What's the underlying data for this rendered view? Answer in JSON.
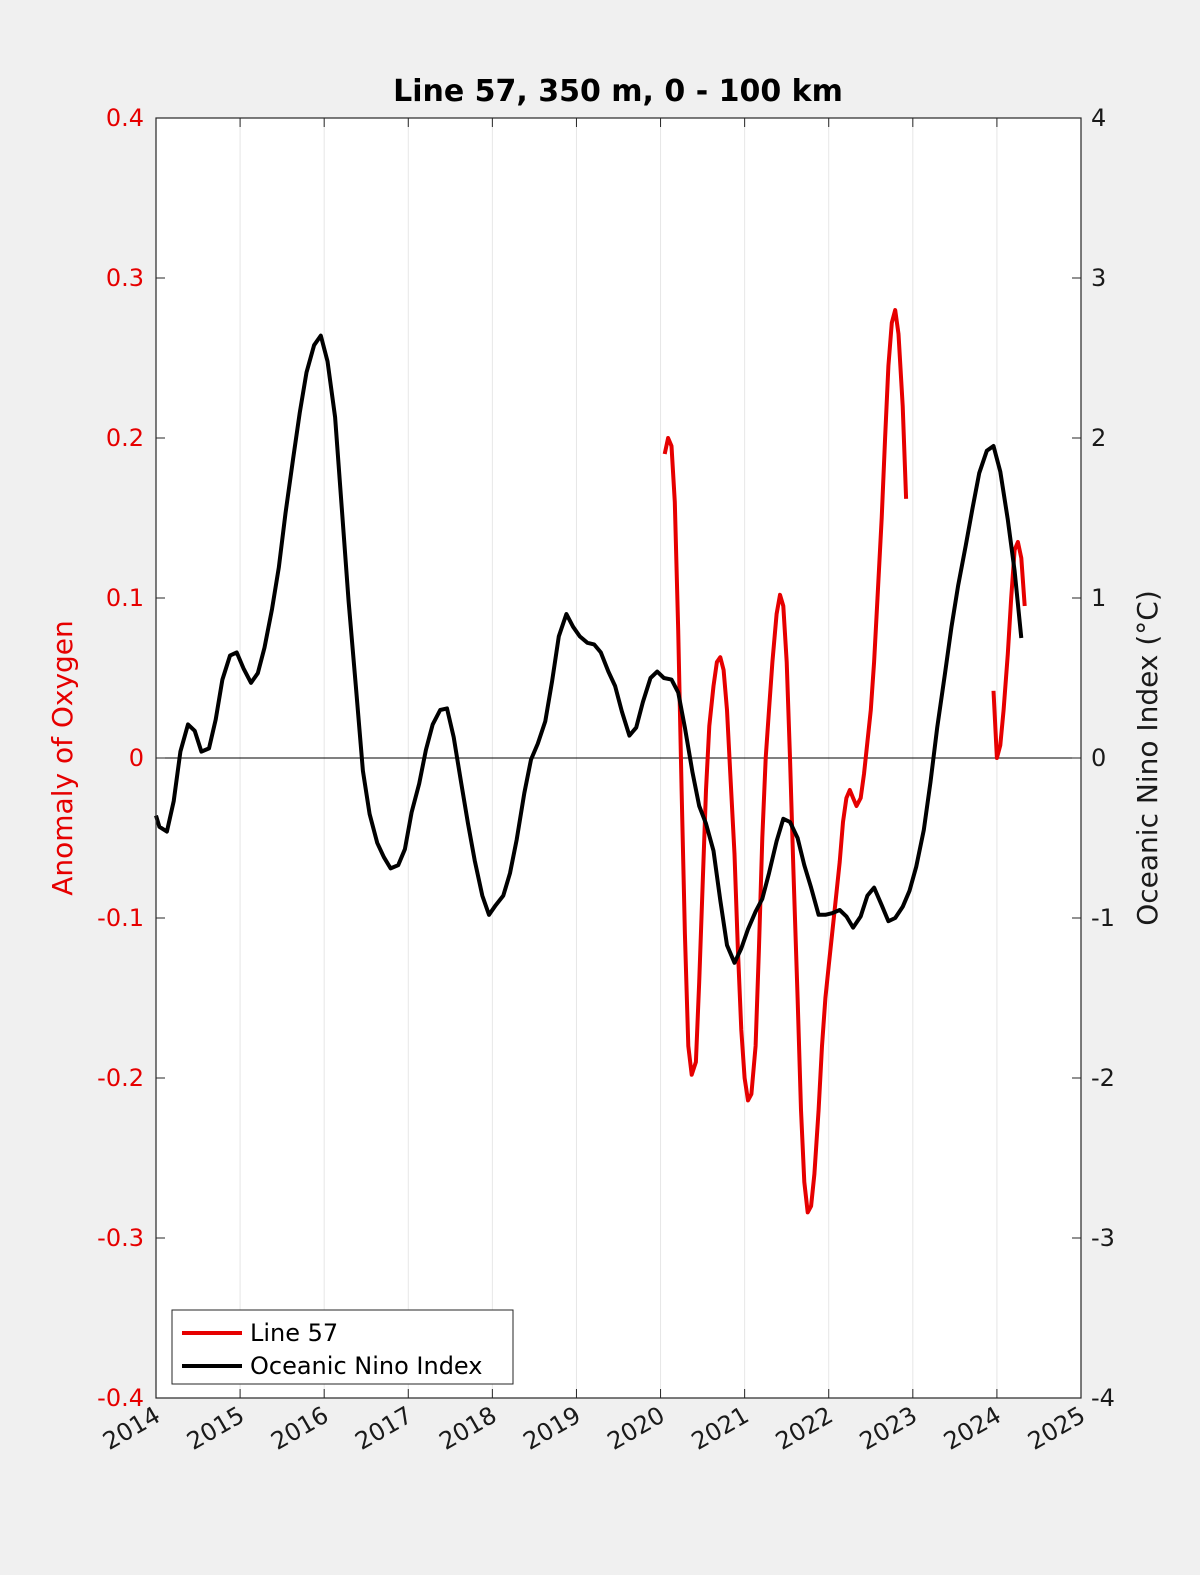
{
  "chart_data": {
    "type": "line",
    "title": "Line 57, 350 m, 0 - 100 km",
    "xlim": [
      2014,
      2025
    ],
    "x_ticks": [
      "2014",
      "2015",
      "2016",
      "2017",
      "2018",
      "2019",
      "2020",
      "2021",
      "2022",
      "2023",
      "2024",
      "2025"
    ],
    "ylabel_left": "Anomaly of Oxygen",
    "ylim_left": [
      -0.4,
      0.4
    ],
    "y_ticks_left": [
      "-0.4",
      "-0.3",
      "-0.2",
      "-0.1",
      "0",
      "0.1",
      "0.2",
      "0.3",
      "0.4"
    ],
    "ylabel_right": "Oceanic Nino Index (°C)",
    "ylim_right": [
      -4,
      4
    ],
    "y_ticks_right": [
      "-4",
      "-3",
      "-2",
      "-1",
      "0",
      "1",
      "2",
      "3",
      "4"
    ],
    "grid": "vertical",
    "zero_line": true,
    "legend_position": "bottom-left",
    "series": [
      {
        "name": "Line 57",
        "axis": "left",
        "color": "#e60000",
        "segments": [
          [
            [
              2020.05,
              0.19
            ],
            [
              2020.09,
              0.2
            ],
            [
              2020.13,
              0.195
            ],
            [
              2020.17,
              0.16
            ],
            [
              2020.21,
              0.08
            ],
            [
              2020.25,
              -0.02
            ],
            [
              2020.29,
              -0.11
            ],
            [
              2020.33,
              -0.18
            ],
            [
              2020.37,
              -0.198
            ],
            [
              2020.42,
              -0.19
            ],
            [
              2020.46,
              -0.14
            ],
            [
              2020.5,
              -0.08
            ],
            [
              2020.54,
              -0.02
            ],
            [
              2020.58,
              0.02
            ],
            [
              2020.63,
              0.045
            ],
            [
              2020.67,
              0.06
            ],
            [
              2020.71,
              0.063
            ],
            [
              2020.75,
              0.055
            ],
            [
              2020.79,
              0.03
            ],
            [
              2020.83,
              -0.01
            ],
            [
              2020.88,
              -0.06
            ],
            [
              2020.92,
              -0.12
            ],
            [
              2020.96,
              -0.17
            ],
            [
              2021.0,
              -0.2
            ],
            [
              2021.04,
              -0.214
            ],
            [
              2021.08,
              -0.21
            ],
            [
              2021.13,
              -0.18
            ],
            [
              2021.17,
              -0.12
            ],
            [
              2021.21,
              -0.05
            ],
            [
              2021.25,
              0.0
            ],
            [
              2021.29,
              0.03
            ],
            [
              2021.33,
              0.06
            ],
            [
              2021.38,
              0.09
            ],
            [
              2021.42,
              0.102
            ],
            [
              2021.46,
              0.095
            ],
            [
              2021.5,
              0.06
            ],
            [
              2021.54,
              0.0
            ],
            [
              2021.58,
              -0.07
            ],
            [
              2021.63,
              -0.15
            ],
            [
              2021.67,
              -0.22
            ],
            [
              2021.71,
              -0.265
            ],
            [
              2021.75,
              -0.284
            ],
            [
              2021.79,
              -0.28
            ],
            [
              2021.83,
              -0.26
            ],
            [
              2021.88,
              -0.22
            ],
            [
              2021.92,
              -0.18
            ],
            [
              2021.96,
              -0.15
            ],
            [
              2022.0,
              -0.13
            ],
            [
              2022.04,
              -0.11
            ],
            [
              2022.08,
              -0.09
            ],
            [
              2022.13,
              -0.065
            ],
            [
              2022.17,
              -0.04
            ],
            [
              2022.21,
              -0.025
            ],
            [
              2022.25,
              -0.02
            ],
            [
              2022.29,
              -0.025
            ],
            [
              2022.33,
              -0.03
            ],
            [
              2022.38,
              -0.025
            ],
            [
              2022.42,
              -0.01
            ],
            [
              2022.46,
              0.01
            ],
            [
              2022.5,
              0.03
            ],
            [
              2022.54,
              0.06
            ],
            [
              2022.58,
              0.1
            ],
            [
              2022.63,
              0.15
            ],
            [
              2022.67,
              0.2
            ],
            [
              2022.71,
              0.245
            ],
            [
              2022.75,
              0.272
            ],
            [
              2022.79,
              0.28
            ],
            [
              2022.83,
              0.265
            ],
            [
              2022.88,
              0.22
            ],
            [
              2022.92,
              0.162
            ]
          ],
          [
            [
              2023.96,
              0.042
            ],
            [
              2024.0,
              0.0
            ],
            [
              2024.04,
              0.008
            ],
            [
              2024.08,
              0.03
            ],
            [
              2024.13,
              0.065
            ],
            [
              2024.17,
              0.1
            ],
            [
              2024.21,
              0.13
            ],
            [
              2024.25,
              0.135
            ],
            [
              2024.29,
              0.125
            ],
            [
              2024.33,
              0.095
            ]
          ]
        ]
      },
      {
        "name": "Oceanic Nino Index",
        "axis": "right",
        "color": "#000000",
        "segments": [
          [
            [
              2014.0,
              -0.36
            ],
            [
              2014.04,
              -0.43
            ],
            [
              2014.13,
              -0.46
            ],
            [
              2014.21,
              -0.27
            ],
            [
              2014.29,
              0.04
            ],
            [
              2014.38,
              0.21
            ],
            [
              2014.46,
              0.17
            ],
            [
              2014.54,
              0.04
            ],
            [
              2014.63,
              0.06
            ],
            [
              2014.71,
              0.24
            ],
            [
              2014.79,
              0.49
            ],
            [
              2014.88,
              0.64
            ],
            [
              2014.96,
              0.66
            ],
            [
              2015.04,
              0.56
            ],
            [
              2015.13,
              0.47
            ],
            [
              2015.21,
              0.53
            ],
            [
              2015.29,
              0.69
            ],
            [
              2015.38,
              0.93
            ],
            [
              2015.46,
              1.19
            ],
            [
              2015.54,
              1.53
            ],
            [
              2015.63,
              1.87
            ],
            [
              2015.71,
              2.16
            ],
            [
              2015.79,
              2.41
            ],
            [
              2015.88,
              2.58
            ],
            [
              2015.96,
              2.64
            ],
            [
              2016.04,
              2.48
            ],
            [
              2016.13,
              2.13
            ],
            [
              2016.21,
              1.56
            ],
            [
              2016.29,
              0.98
            ],
            [
              2016.38,
              0.43
            ],
            [
              2016.46,
              -0.08
            ],
            [
              2016.54,
              -0.35
            ],
            [
              2016.63,
              -0.53
            ],
            [
              2016.71,
              -0.62
            ],
            [
              2016.79,
              -0.69
            ],
            [
              2016.88,
              -0.67
            ],
            [
              2016.96,
              -0.57
            ],
            [
              2017.04,
              -0.34
            ],
            [
              2017.13,
              -0.16
            ],
            [
              2017.21,
              0.05
            ],
            [
              2017.29,
              0.21
            ],
            [
              2017.38,
              0.3
            ],
            [
              2017.46,
              0.31
            ],
            [
              2017.54,
              0.13
            ],
            [
              2017.63,
              -0.16
            ],
            [
              2017.71,
              -0.41
            ],
            [
              2017.79,
              -0.64
            ],
            [
              2017.88,
              -0.86
            ],
            [
              2017.96,
              -0.98
            ],
            [
              2018.04,
              -0.92
            ],
            [
              2018.13,
              -0.86
            ],
            [
              2018.21,
              -0.72
            ],
            [
              2018.29,
              -0.51
            ],
            [
              2018.38,
              -0.22
            ],
            [
              2018.46,
              -0.01
            ],
            [
              2018.54,
              0.09
            ],
            [
              2018.63,
              0.23
            ],
            [
              2018.71,
              0.48
            ],
            [
              2018.79,
              0.76
            ],
            [
              2018.88,
              0.9
            ],
            [
              2018.96,
              0.82
            ],
            [
              2019.04,
              0.76
            ],
            [
              2019.13,
              0.72
            ],
            [
              2019.21,
              0.71
            ],
            [
              2019.29,
              0.66
            ],
            [
              2019.38,
              0.54
            ],
            [
              2019.46,
              0.45
            ],
            [
              2019.54,
              0.29
            ],
            [
              2019.63,
              0.14
            ],
            [
              2019.71,
              0.19
            ],
            [
              2019.79,
              0.35
            ],
            [
              2019.88,
              0.5
            ],
            [
              2019.96,
              0.54
            ],
            [
              2020.04,
              0.5
            ],
            [
              2020.13,
              0.49
            ],
            [
              2020.21,
              0.41
            ],
            [
              2020.29,
              0.19
            ],
            [
              2020.38,
              -0.09
            ],
            [
              2020.46,
              -0.3
            ],
            [
              2020.54,
              -0.41
            ],
            [
              2020.63,
              -0.58
            ],
            [
              2020.71,
              -0.89
            ],
            [
              2020.79,
              -1.17
            ],
            [
              2020.88,
              -1.28
            ],
            [
              2020.96,
              -1.19
            ],
            [
              2021.04,
              -1.07
            ],
            [
              2021.13,
              -0.96
            ],
            [
              2021.21,
              -0.88
            ],
            [
              2021.29,
              -0.72
            ],
            [
              2021.38,
              -0.52
            ],
            [
              2021.46,
              -0.38
            ],
            [
              2021.54,
              -0.4
            ],
            [
              2021.63,
              -0.5
            ],
            [
              2021.71,
              -0.67
            ],
            [
              2021.79,
              -0.81
            ],
            [
              2021.88,
              -0.98
            ],
            [
              2021.96,
              -0.98
            ],
            [
              2022.04,
              -0.97
            ],
            [
              2022.13,
              -0.95
            ],
            [
              2022.21,
              -0.99
            ],
            [
              2022.29,
              -1.06
            ],
            [
              2022.38,
              -0.99
            ],
            [
              2022.46,
              -0.86
            ],
            [
              2022.54,
              -0.81
            ],
            [
              2022.63,
              -0.92
            ],
            [
              2022.71,
              -1.02
            ],
            [
              2022.79,
              -1.0
            ],
            [
              2022.88,
              -0.93
            ],
            [
              2022.96,
              -0.83
            ],
            [
              2023.04,
              -0.68
            ],
            [
              2023.13,
              -0.45
            ],
            [
              2023.21,
              -0.15
            ],
            [
              2023.29,
              0.19
            ],
            [
              2023.38,
              0.52
            ],
            [
              2023.46,
              0.82
            ],
            [
              2023.54,
              1.08
            ],
            [
              2023.63,
              1.33
            ],
            [
              2023.71,
              1.56
            ],
            [
              2023.79,
              1.78
            ],
            [
              2023.88,
              1.92
            ],
            [
              2023.96,
              1.95
            ],
            [
              2024.04,
              1.79
            ],
            [
              2024.13,
              1.49
            ],
            [
              2024.21,
              1.17
            ],
            [
              2024.29,
              0.75
            ]
          ]
        ]
      }
    ]
  }
}
